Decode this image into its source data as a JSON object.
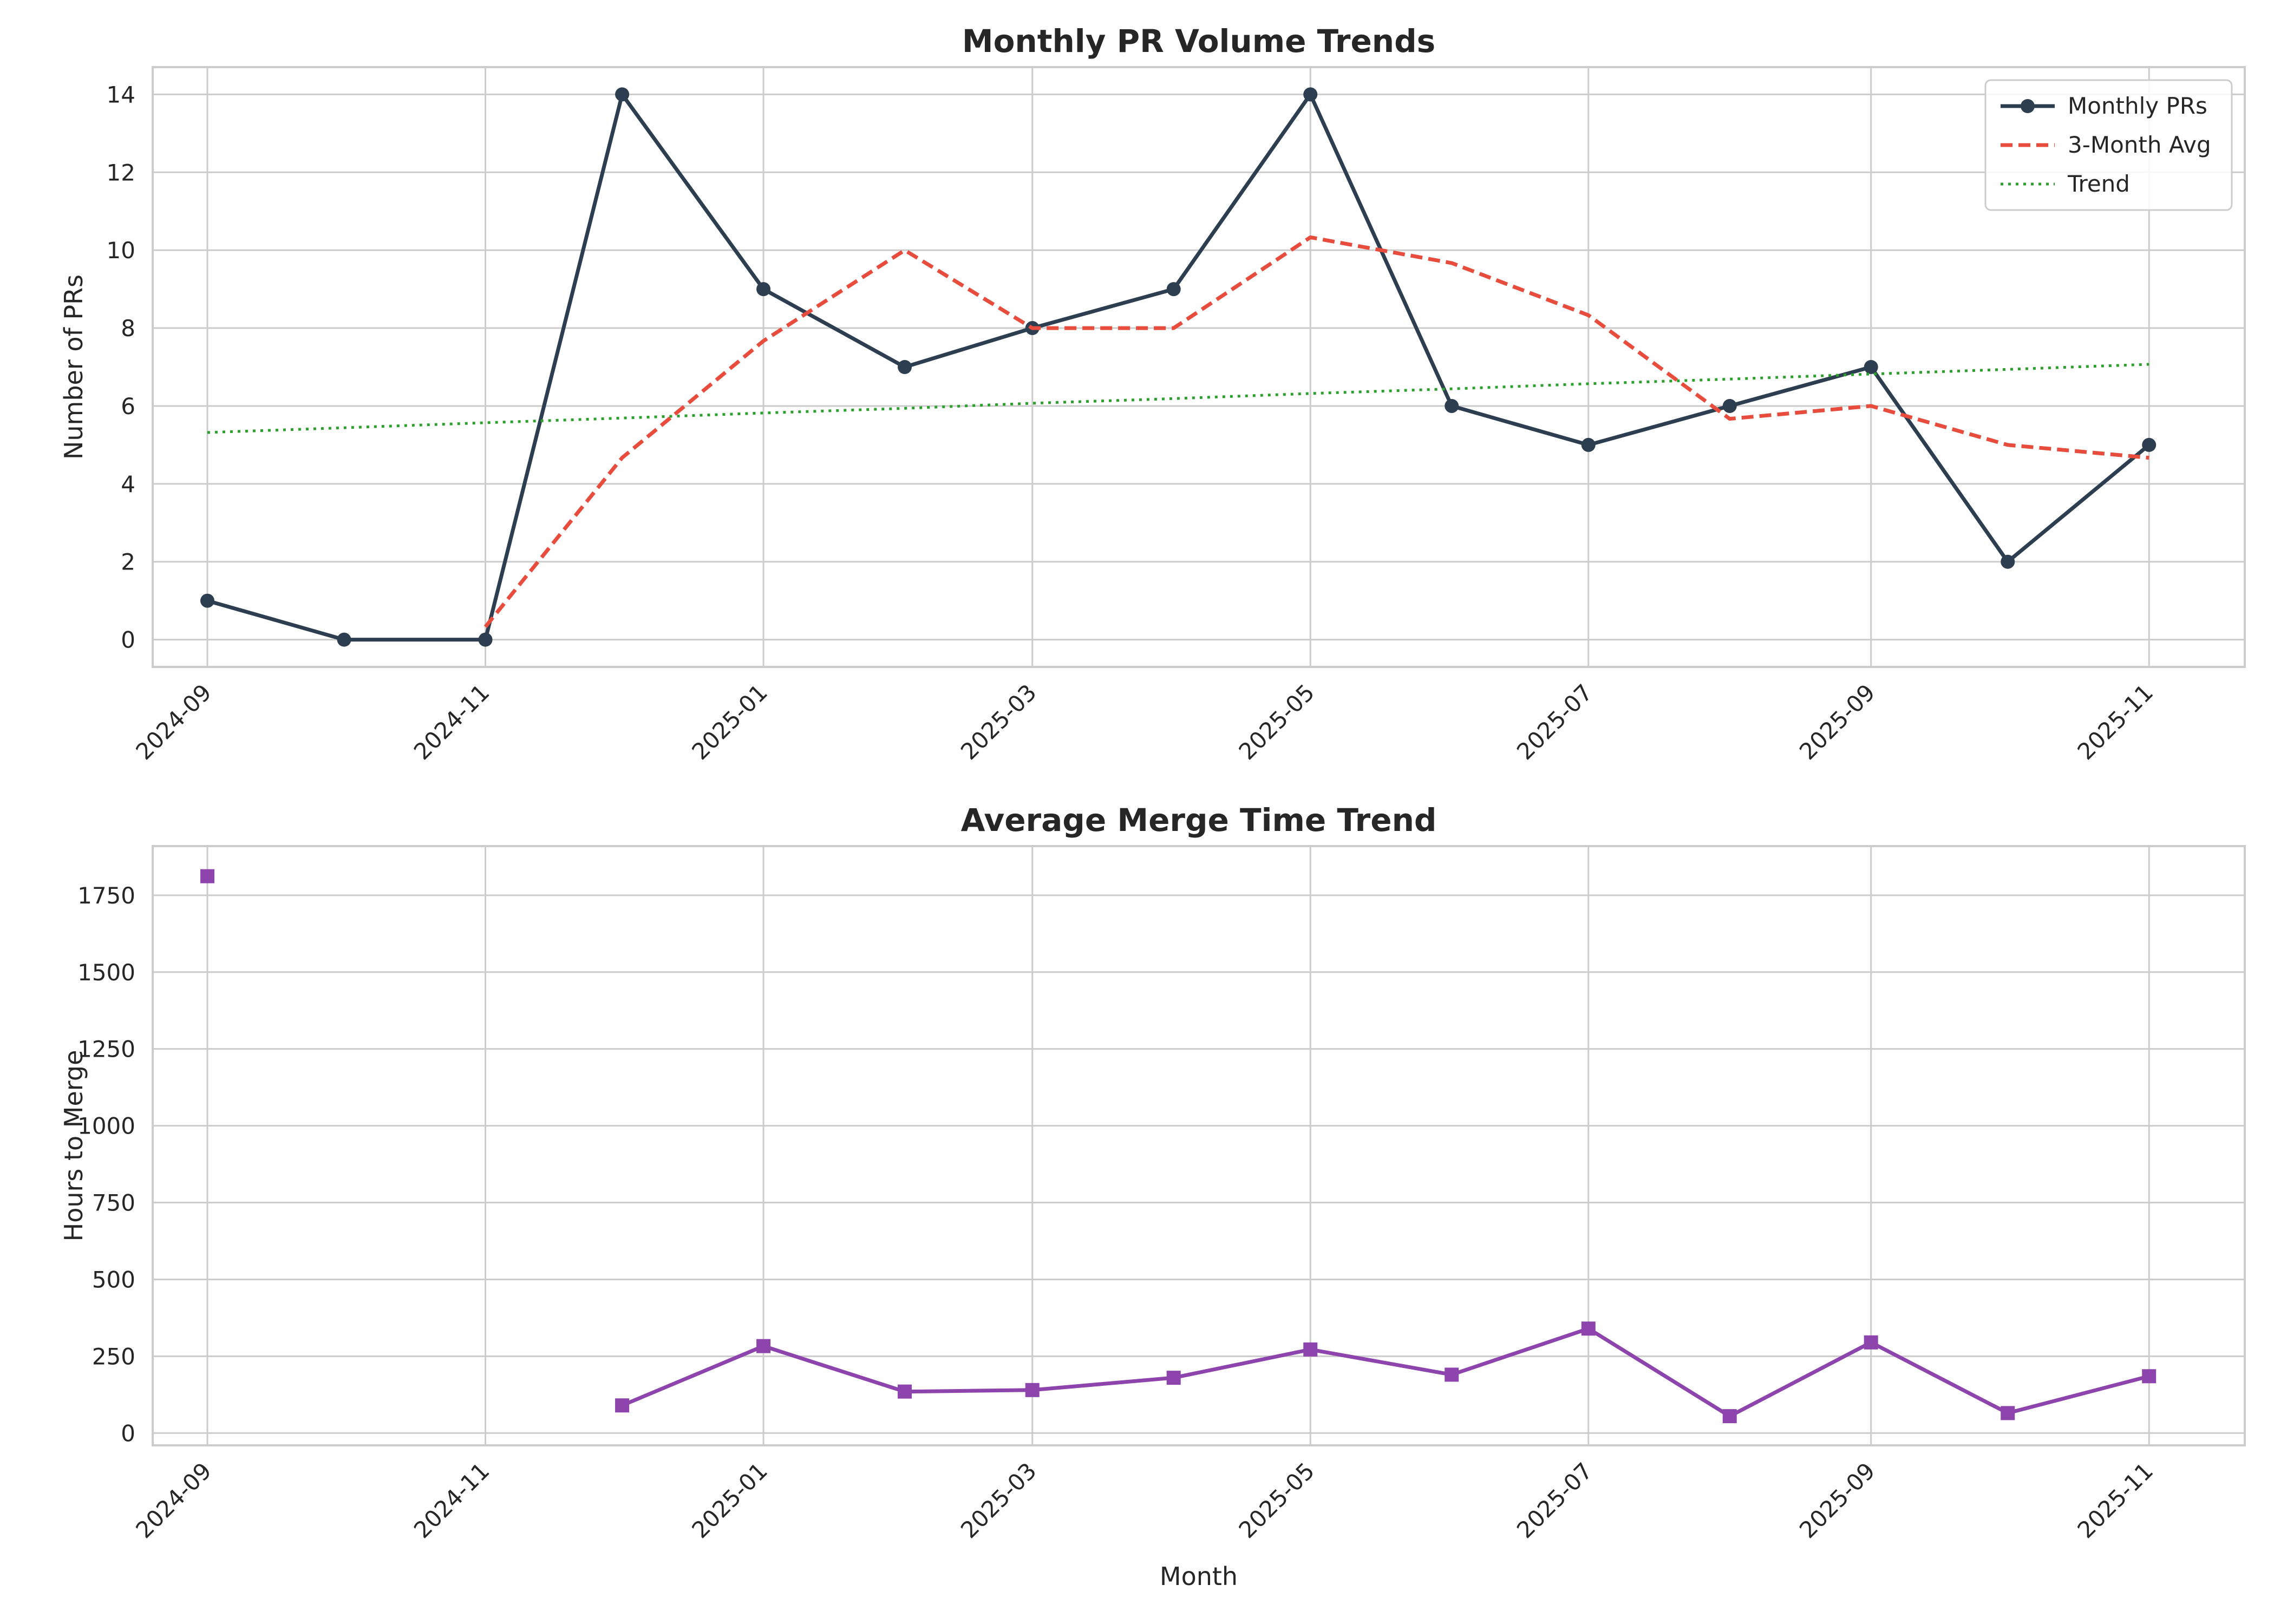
{
  "chart_data": [
    {
      "type": "line",
      "title": "Monthly PR Volume Trends",
      "xlabel": "",
      "ylabel": "Number of PRs",
      "ylim": [
        -0.7,
        14.7
      ],
      "yticks": [
        0,
        2,
        4,
        6,
        8,
        10,
        12,
        14
      ],
      "xlim": [
        "2024-08-20",
        "2025-11-22"
      ],
      "xticks": [
        "2024-09",
        "2024-11",
        "2025-01",
        "2025-03",
        "2025-05",
        "2025-07",
        "2025-09",
        "2025-11"
      ],
      "x": [
        "2024-09-01",
        "2024-10-01",
        "2024-11-01",
        "2024-12-01",
        "2025-01-01",
        "2025-02-01",
        "2025-03-01",
        "2025-04-01",
        "2025-05-01",
        "2025-06-01",
        "2025-07-01",
        "2025-08-01",
        "2025-09-01",
        "2025-10-01",
        "2025-11-01"
      ],
      "grid": true,
      "legend": "top-right",
      "series": [
        {
          "name": "Monthly PRs",
          "color": "#2c3e50",
          "style": "solid",
          "marker": "circle",
          "values": [
            1,
            0,
            0,
            14,
            9,
            7,
            8,
            9,
            14,
            6,
            5,
            6,
            7,
            2,
            5
          ]
        },
        {
          "name": "3-Month Avg",
          "color": "#e74c3c",
          "style": "dashed",
          "marker": "none",
          "values": [
            null,
            null,
            0.33,
            4.67,
            7.67,
            10,
            8,
            8,
            10.33,
            9.67,
            8.33,
            5.67,
            6,
            5,
            4.67
          ]
        },
        {
          "name": "Trend",
          "color": "#2ca02c",
          "style": "dotted",
          "marker": "none",
          "values": [
            5.32,
            5.44,
            5.57,
            5.69,
            5.82,
            5.94,
            6.07,
            6.19,
            6.32,
            6.44,
            6.57,
            6.69,
            6.82,
            6.94,
            7.07
          ]
        }
      ]
    },
    {
      "type": "line",
      "title": "Average Merge Time Trend",
      "xlabel": "Month",
      "ylabel": "Hours to Merge",
      "ylim": [
        -40,
        1910
      ],
      "yticks": [
        0,
        250,
        500,
        750,
        1000,
        1250,
        1500,
        1750
      ],
      "xlim": [
        "2024-08-20",
        "2025-11-22"
      ],
      "xticks": [
        "2024-09",
        "2024-11",
        "2025-01",
        "2025-03",
        "2025-05",
        "2025-07",
        "2025-09",
        "2025-11"
      ],
      "x": [
        "2024-09-01",
        "2024-10-01",
        "2024-11-01",
        "2024-12-01",
        "2025-01-01",
        "2025-02-01",
        "2025-03-01",
        "2025-04-01",
        "2025-05-01",
        "2025-06-01",
        "2025-07-01",
        "2025-08-01",
        "2025-09-01",
        "2025-10-01",
        "2025-11-01"
      ],
      "grid": true,
      "legend": "none",
      "series": [
        {
          "color": "#8e44ad",
          "style": "solid",
          "marker": "square",
          "values": [
            1812,
            null,
            null,
            90,
            283,
            135,
            140,
            180,
            272,
            190,
            340,
            55,
            295,
            65,
            185
          ]
        }
      ]
    }
  ]
}
